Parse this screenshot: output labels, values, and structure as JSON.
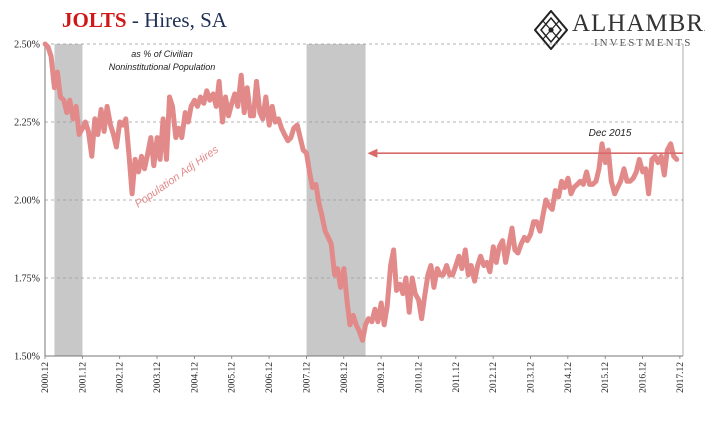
{
  "header": {
    "title_main": "JOLTS",
    "title_sep": " - ",
    "title_rest": "Hires, SA"
  },
  "logo": {
    "brand": "ALHAMBRA",
    "sub": "INVESTMENTS",
    "icon": "diamond-lattice-icon"
  },
  "colors": {
    "series": "#e28a8a",
    "recession": "#c8c8c8",
    "arrow": "#d96a6a",
    "title_accent": "#d01818",
    "title_text": "#1f2f55"
  },
  "chart_data": {
    "type": "line",
    "title": "JOLTS - Hires, SA",
    "subtitle": "as % of Civilian Noninstitutional Population",
    "xlabel": "",
    "ylabel": "",
    "ylim": [
      1.5,
      2.5
    ],
    "yticks": [
      "1.50%",
      "1.75%",
      "2.00%",
      "2.25%",
      "2.50%"
    ],
    "ytick_values": [
      1.5,
      1.75,
      2.0,
      2.25,
      2.5
    ],
    "xticks": [
      "2000.12",
      "2001.12",
      "2002.12",
      "2003.12",
      "2004.12",
      "2005.12",
      "2006.12",
      "2007.12",
      "2008.12",
      "2009.12",
      "2010.12",
      "2011.12",
      "2012.12",
      "2013.12",
      "2014.12",
      "2015.12",
      "2016.12",
      "2017.12"
    ],
    "xlim": [
      2000.917,
      2018.0
    ],
    "grid": "horizontal-dashed",
    "recessions": [
      [
        2001.17,
        2001.92
      ],
      [
        2007.92,
        2009.5
      ]
    ],
    "series": [
      {
        "name": "Population Adj Hires",
        "points": [
          [
            2000.92,
            2.5
          ],
          [
            2001.0,
            2.49
          ],
          [
            2001.08,
            2.46
          ],
          [
            2001.17,
            2.36
          ],
          [
            2001.25,
            2.41
          ],
          [
            2001.33,
            2.33
          ],
          [
            2001.42,
            2.32
          ],
          [
            2001.5,
            2.28
          ],
          [
            2001.58,
            2.32
          ],
          [
            2001.67,
            2.26
          ],
          [
            2001.75,
            2.3
          ],
          [
            2001.83,
            2.21
          ],
          [
            2001.92,
            2.23
          ],
          [
            2002.0,
            2.25
          ],
          [
            2002.08,
            2.22
          ],
          [
            2002.17,
            2.14
          ],
          [
            2002.25,
            2.26
          ],
          [
            2002.33,
            2.21
          ],
          [
            2002.42,
            2.29
          ],
          [
            2002.5,
            2.22
          ],
          [
            2002.58,
            2.3
          ],
          [
            2002.67,
            2.24
          ],
          [
            2002.75,
            2.21
          ],
          [
            2002.83,
            2.17
          ],
          [
            2002.92,
            2.25
          ],
          [
            2003.0,
            2.24
          ],
          [
            2003.08,
            2.26
          ],
          [
            2003.17,
            2.14
          ],
          [
            2003.25,
            2.02
          ],
          [
            2003.33,
            2.13
          ],
          [
            2003.42,
            2.09
          ],
          [
            2003.5,
            2.14
          ],
          [
            2003.58,
            2.1
          ],
          [
            2003.67,
            2.15
          ],
          [
            2003.75,
            2.2
          ],
          [
            2003.83,
            2.11
          ],
          [
            2003.92,
            2.2
          ],
          [
            2004.0,
            2.13
          ],
          [
            2004.08,
            2.26
          ],
          [
            2004.17,
            2.13
          ],
          [
            2004.25,
            2.33
          ],
          [
            2004.33,
            2.3
          ],
          [
            2004.42,
            2.2
          ],
          [
            2004.5,
            2.23
          ],
          [
            2004.58,
            2.2
          ],
          [
            2004.67,
            2.28
          ],
          [
            2004.75,
            2.25
          ],
          [
            2004.83,
            2.3
          ],
          [
            2004.92,
            2.32
          ],
          [
            2005.0,
            2.3
          ],
          [
            2005.08,
            2.33
          ],
          [
            2005.17,
            2.31
          ],
          [
            2005.25,
            2.35
          ],
          [
            2005.33,
            2.32
          ],
          [
            2005.42,
            2.34
          ],
          [
            2005.5,
            2.3
          ],
          [
            2005.58,
            2.38
          ],
          [
            2005.67,
            2.25
          ],
          [
            2005.75,
            2.33
          ],
          [
            2005.83,
            2.27
          ],
          [
            2005.92,
            2.31
          ],
          [
            2006.0,
            2.34
          ],
          [
            2006.08,
            2.3
          ],
          [
            2006.17,
            2.4
          ],
          [
            2006.25,
            2.28
          ],
          [
            2006.33,
            2.36
          ],
          [
            2006.42,
            2.27
          ],
          [
            2006.5,
            2.27
          ],
          [
            2006.58,
            2.38
          ],
          [
            2006.67,
            2.28
          ],
          [
            2006.75,
            2.26
          ],
          [
            2006.83,
            2.33
          ],
          [
            2006.92,
            2.24
          ],
          [
            2007.0,
            2.3
          ],
          [
            2007.08,
            2.25
          ],
          [
            2007.17,
            2.26
          ],
          [
            2007.25,
            2.23
          ],
          [
            2007.33,
            2.21
          ],
          [
            2007.42,
            2.19
          ],
          [
            2007.5,
            2.2
          ],
          [
            2007.58,
            2.23
          ],
          [
            2007.67,
            2.24
          ],
          [
            2007.75,
            2.2
          ],
          [
            2007.83,
            2.16
          ],
          [
            2007.92,
            2.15
          ],
          [
            2008.0,
            2.09
          ],
          [
            2008.08,
            2.04
          ],
          [
            2008.17,
            2.05
          ],
          [
            2008.25,
            1.99
          ],
          [
            2008.33,
            1.95
          ],
          [
            2008.42,
            1.9
          ],
          [
            2008.5,
            1.88
          ],
          [
            2008.58,
            1.86
          ],
          [
            2008.67,
            1.76
          ],
          [
            2008.75,
            1.78
          ],
          [
            2008.83,
            1.72
          ],
          [
            2008.92,
            1.78
          ],
          [
            2009.0,
            1.68
          ],
          [
            2009.08,
            1.6
          ],
          [
            2009.17,
            1.63
          ],
          [
            2009.25,
            1.6
          ],
          [
            2009.33,
            1.58
          ],
          [
            2009.42,
            1.55
          ],
          [
            2009.5,
            1.6
          ],
          [
            2009.58,
            1.62
          ],
          [
            2009.67,
            1.61
          ],
          [
            2009.75,
            1.65
          ],
          [
            2009.83,
            1.61
          ],
          [
            2009.92,
            1.67
          ],
          [
            2010.0,
            1.6
          ],
          [
            2010.08,
            1.66
          ],
          [
            2010.17,
            1.79
          ],
          [
            2010.25,
            1.84
          ],
          [
            2010.33,
            1.71
          ],
          [
            2010.42,
            1.73
          ],
          [
            2010.5,
            1.7
          ],
          [
            2010.58,
            1.75
          ],
          [
            2010.67,
            1.64
          ],
          [
            2010.75,
            1.75
          ],
          [
            2010.83,
            1.7
          ],
          [
            2010.92,
            1.68
          ],
          [
            2011.0,
            1.62
          ],
          [
            2011.08,
            1.69
          ],
          [
            2011.17,
            1.76
          ],
          [
            2011.25,
            1.79
          ],
          [
            2011.33,
            1.72
          ],
          [
            2011.42,
            1.78
          ],
          [
            2011.5,
            1.76
          ],
          [
            2011.58,
            1.76
          ],
          [
            2011.67,
            1.79
          ],
          [
            2011.75,
            1.76
          ],
          [
            2011.83,
            1.76
          ],
          [
            2011.92,
            1.79
          ],
          [
            2012.0,
            1.82
          ],
          [
            2012.08,
            1.78
          ],
          [
            2012.17,
            1.84
          ],
          [
            2012.25,
            1.76
          ],
          [
            2012.33,
            1.79
          ],
          [
            2012.42,
            1.74
          ],
          [
            2012.5,
            1.79
          ],
          [
            2012.58,
            1.82
          ],
          [
            2012.67,
            1.79
          ],
          [
            2012.75,
            1.8
          ],
          [
            2012.83,
            1.77
          ],
          [
            2012.92,
            1.85
          ],
          [
            2013.0,
            1.8
          ],
          [
            2013.08,
            1.85
          ],
          [
            2013.17,
            1.87
          ],
          [
            2013.25,
            1.8
          ],
          [
            2013.33,
            1.85
          ],
          [
            2013.42,
            1.91
          ],
          [
            2013.5,
            1.84
          ],
          [
            2013.58,
            1.83
          ],
          [
            2013.67,
            1.86
          ],
          [
            2013.75,
            1.88
          ],
          [
            2013.83,
            1.87
          ],
          [
            2013.92,
            1.89
          ],
          [
            2014.0,
            1.93
          ],
          [
            2014.08,
            1.93
          ],
          [
            2014.17,
            1.9
          ],
          [
            2014.25,
            1.95
          ],
          [
            2014.33,
            2.0
          ],
          [
            2014.42,
            1.98
          ],
          [
            2014.5,
            1.97
          ],
          [
            2014.58,
            2.03
          ],
          [
            2014.67,
            2.01
          ],
          [
            2014.75,
            2.06
          ],
          [
            2014.83,
            2.04
          ],
          [
            2014.92,
            2.07
          ],
          [
            2015.0,
            2.02
          ],
          [
            2015.08,
            2.04
          ],
          [
            2015.17,
            2.05
          ],
          [
            2015.25,
            2.06
          ],
          [
            2015.33,
            2.05
          ],
          [
            2015.42,
            2.09
          ],
          [
            2015.5,
            2.05
          ],
          [
            2015.58,
            2.05
          ],
          [
            2015.67,
            2.06
          ],
          [
            2015.75,
            2.1
          ],
          [
            2015.83,
            2.18
          ],
          [
            2015.92,
            2.12
          ],
          [
            2016.0,
            2.16
          ],
          [
            2016.08,
            2.06
          ],
          [
            2016.17,
            2.02
          ],
          [
            2016.25,
            2.04
          ],
          [
            2016.33,
            2.06
          ],
          [
            2016.42,
            2.1
          ],
          [
            2016.5,
            2.06
          ],
          [
            2016.58,
            2.06
          ],
          [
            2016.67,
            2.07
          ],
          [
            2016.75,
            2.09
          ],
          [
            2016.83,
            2.13
          ],
          [
            2016.92,
            2.09
          ],
          [
            2017.0,
            2.1
          ],
          [
            2017.08,
            2.02
          ],
          [
            2017.17,
            2.13
          ],
          [
            2017.25,
            2.14
          ],
          [
            2017.33,
            2.12
          ],
          [
            2017.42,
            2.14
          ],
          [
            2017.5,
            2.08
          ],
          [
            2017.58,
            2.16
          ],
          [
            2017.67,
            2.18
          ],
          [
            2017.75,
            2.14
          ],
          [
            2017.83,
            2.13
          ]
        ]
      }
    ],
    "annotations": {
      "series_label": "Population Adj Hires",
      "arrow_label": "Dec 2015",
      "arrow_level": 2.15
    }
  }
}
